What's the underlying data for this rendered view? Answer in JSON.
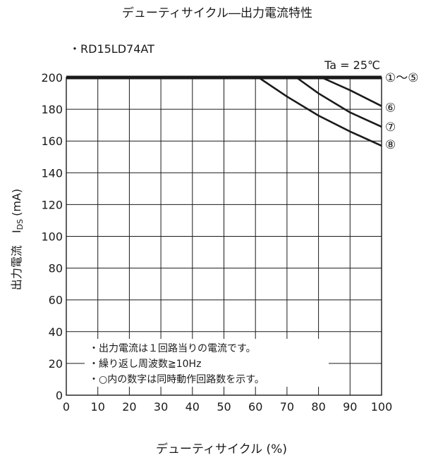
{
  "chart_data": {
    "type": "line",
    "title": "デューティサイクル―出力電流特性",
    "subtitle": "・RD15LD74AT",
    "condition": "Ta = 25℃",
    "xlabel": "デューティサイクル (%)",
    "ylabel_name": "出力電流",
    "ylabel_symbol": "I",
    "ylabel_sub": "DS",
    "ylabel_unit": "(mA)",
    "xlim": [
      0,
      100
    ],
    "ylim": [
      0,
      200
    ],
    "x_ticks": [
      0,
      10,
      20,
      30,
      40,
      50,
      60,
      70,
      80,
      90,
      100
    ],
    "y_ticks": [
      0,
      20,
      40,
      60,
      80,
      100,
      120,
      140,
      160,
      180,
      200
    ],
    "grid": true,
    "series": [
      {
        "name": "①～⑤",
        "x": [
          0,
          100
        ],
        "y": [
          200,
          200
        ]
      },
      {
        "name": "⑥",
        "x": [
          0,
          81,
          90,
          100
        ],
        "y": [
          200,
          200,
          192,
          182
        ]
      },
      {
        "name": "⑦",
        "x": [
          0,
          73,
          80,
          90,
          100
        ],
        "y": [
          200,
          200,
          190,
          178,
          169
        ]
      },
      {
        "name": "⑧",
        "x": [
          0,
          61,
          70,
          80,
          90,
          100
        ],
        "y": [
          200,
          200,
          188,
          176,
          166,
          157
        ]
      }
    ],
    "notes": [
      "・出力電流は１回路当りの電流です。",
      "・繰り返し周波数≧10Hz",
      "・○内の数字は同時動作回路数を示す。"
    ]
  }
}
